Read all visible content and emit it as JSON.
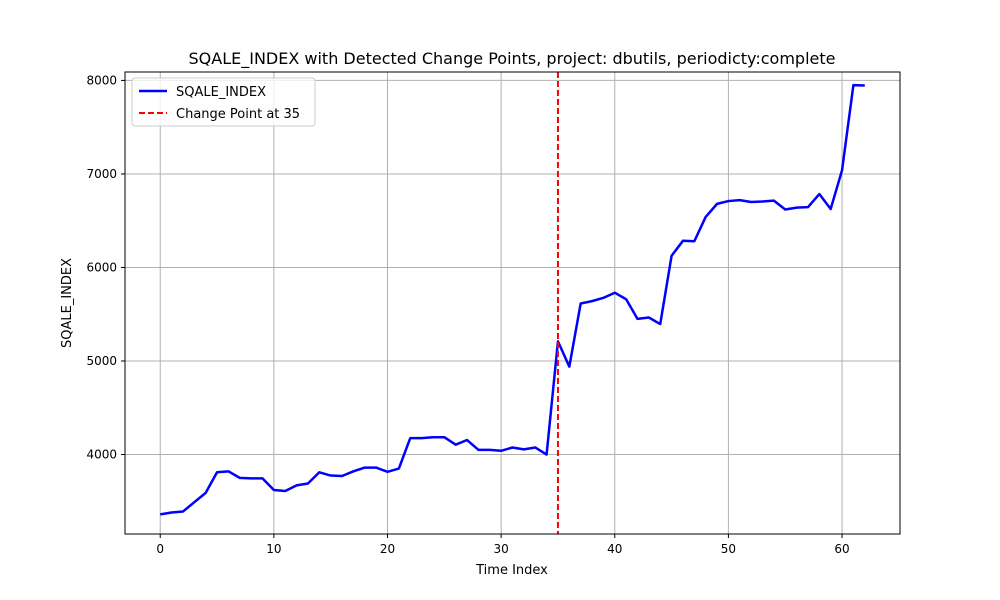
{
  "chart_data": {
    "type": "line",
    "title": "SQALE_INDEX with Detected Change Points, project: dbutils, periodicty:complete",
    "xlabel": "Time Index",
    "ylabel": "SQALE_INDEX",
    "xlim": [
      -3.1,
      65.1
    ],
    "ylim": [
      3150,
      8090
    ],
    "xticks": [
      0,
      10,
      20,
      30,
      40,
      50,
      60
    ],
    "yticks": [
      4000,
      5000,
      6000,
      7000,
      8000
    ],
    "grid": true,
    "legend_position": "top-left",
    "series": [
      {
        "name": "SQALE_INDEX",
        "color": "#0000ff",
        "x": [
          0,
          1,
          2,
          3,
          4,
          5,
          6,
          7,
          8,
          9,
          10,
          11,
          12,
          13,
          14,
          15,
          16,
          17,
          18,
          19,
          20,
          21,
          22,
          23,
          24,
          25,
          26,
          27,
          28,
          29,
          30,
          31,
          32,
          33,
          34,
          35,
          36,
          37,
          38,
          39,
          40,
          41,
          42,
          43,
          44,
          45,
          46,
          47,
          48,
          49,
          50,
          51,
          52,
          53,
          54,
          55,
          56,
          57,
          58,
          59,
          60,
          61,
          62
        ],
        "values": [
          3360,
          3380,
          3390,
          3490,
          3590,
          3810,
          3820,
          3750,
          3745,
          3745,
          3620,
          3610,
          3670,
          3690,
          3810,
          3775,
          3770,
          3820,
          3860,
          3860,
          3815,
          3850,
          4175,
          4175,
          4185,
          4185,
          4105,
          4155,
          4050,
          4050,
          4040,
          4075,
          4055,
          4075,
          4000,
          5210,
          4940,
          5615,
          5640,
          5675,
          5730,
          5660,
          5450,
          5465,
          5395,
          6125,
          6285,
          6280,
          6540,
          6680,
          6710,
          6720,
          6700,
          6705,
          6715,
          6620,
          6640,
          6645,
          6785,
          6625,
          7040,
          7950,
          7945
        ]
      }
    ],
    "change_points": [
      {
        "name": "Change Point at 35",
        "x": 35,
        "color": "#ff0000"
      }
    ]
  }
}
